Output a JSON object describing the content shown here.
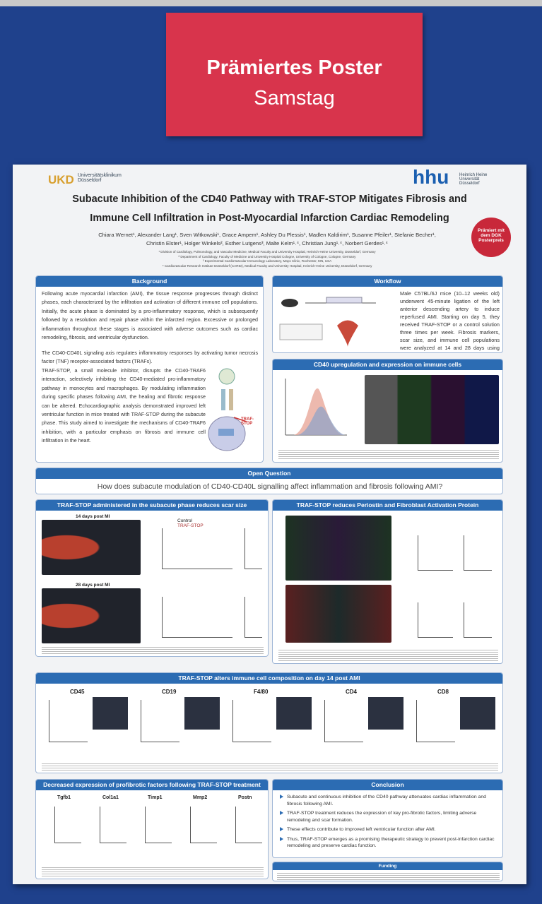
{
  "sign": {
    "line1": "Prämiertes Poster",
    "line2": "Samstag"
  },
  "poster": {
    "logo_left": {
      "mark": "UKD",
      "name": "Universitätsklinikum Düsseldorf"
    },
    "logo_right": {
      "mark": "hhu",
      "name": "Heinrich Heine Universität Düsseldorf"
    },
    "title": [
      "Subacute Inhibition of the CD40 Pathway with TRAF-STOP Mitigates Fibrosis and",
      "Immune Cell Infiltration in Post-Myocardial Infarction Cardiac Remodeling"
    ],
    "authors": [
      "Chiara Wernet¹, Alexander Lang¹, Sven Witkowski¹, Grace Ampem¹, Ashley Du Plessis¹, Madlen Kaldirim¹, Susanne Pfeiler¹, Stefanie Becher¹,",
      "Christin Elster¹, Holger Winkels², Esther Lutgens³, Malte Kelm¹˒⁴, Christian Jung¹˒⁴, Norbert Gerdes¹˒⁴"
    ],
    "affiliations": [
      "¹ Division of Cardiology, Pulmonology, and Vascular Medicine, Medical Faculty and University Hospital, Heinrich-Heine University, Düsseldorf, Germany",
      "² Department of Cardiology, Faculty of Medicine and University Hospital Cologne, University of Cologne, Cologne, Germany",
      "³ Experimental CardioVascular Immunology Laboratory, Mayo Clinic, Rochester, MN, USA",
      "⁴ Cardiovascular Research Institute Düsseldorf (CARID), Medical Faculty and University Hospital, Heinrich-Heine University, Düsseldorf, Germany"
    ],
    "badge": "Prämiert mit dem DGK Posterpreis"
  },
  "sections": {
    "background": {
      "heading": "Background",
      "paragraphs": [
        "Following acute myocardial infarction (AMI), the tissue response progresses through distinct phases, each characterized by the infiltration and activation of different immune cell populations. Initially, the acute phase is dominated by a pro-inflammatory response, which is subsequently followed by a resolution and repair phase within the infarcted region. Excessive or prolonged inflammation throughout these stages is associated with adverse outcomes such as cardiac remodeling, fibrosis, and ventricular dysfunction.",
        "The CD40-CD40L signaling axis regulates inflammatory responses by activating tumor necrosis factor (TNF) receptor-associated factors (TRAFs).",
        "TRAF-STOP, a small molecule inhibitor, disrupts the CD40-TRAF6 interaction, selectively inhibiting the CD40-mediated pro-inflammatory pathway in monocytes and macrophages. By modulating inflammation during specific phases following AMI, the healing and fibrotic response can be altered. Echocardiographic analysis demonstrated improved left ventricular function in mice treated with TRAF-STOP during the subacute phase. This study aimed to investigate the mechanisms of CD40-TRAF6 inhibition, with a particular emphasis on fibrosis and immune cell infiltration in the heart."
      ],
      "diagram_label": "TRAF-STOP"
    },
    "workflow": {
      "heading": "Workflow",
      "text": "Male C57BL/6J mice (10–12 weeks old) underwent 45-minute ligation of the left anterior descending artery to induce reperfused AMI. Starting on day 5, they received TRAF-STOP or a control solution three times per week. Fibrosis markers, scar size, and immune cell populations were analyzed at 14 and 28 days using histology and qPCR."
    },
    "cd40": {
      "heading": "CD40 upregulation and expression on immune cells"
    },
    "open_question": {
      "heading": "Open Question",
      "text": "How does subacute modulation of CD40-CD40L signalling affect inflammation and fibrosis following AMI?"
    },
    "scar": {
      "heading": "TRAF-STOP administered in the subacute phase reduces scar size",
      "timepoints": [
        "14 days post MI",
        "28 days post MI"
      ],
      "groups": [
        "Control",
        "TRAF-STOP"
      ]
    },
    "periostin": {
      "heading": "TRAF-STOP reduces Periostin and Fibroblast Activation Protein"
    },
    "immune": {
      "heading": "TRAF-STOP alters immune cell composition on day 14 post AMI",
      "markers": [
        "CD45",
        "CD19",
        "F4/80",
        "CD4",
        "CD8"
      ]
    },
    "decreased": {
      "heading": "Decreased expression of profibrotic factors following TRAF-STOP treatment",
      "genes": [
        "Tgfb1",
        "Col1a1",
        "Timp1",
        "Mmp2",
        "Postn"
      ]
    },
    "conclusion": {
      "heading": "Conclusion",
      "bullets": [
        "Subacute and continuous inhibition of the CD40 pathway attenuates cardiac inflammation and fibrosis following AMI.",
        "TRAF-STOP treatment reduces the expression of key pro-fibrotic factors, limiting adverse remodeling and scar formation.",
        "These effects contribute to improved left ventricular function after AMI.",
        "Thus, TRAF-STOP emerges as a promising therapeutic strategy to prevent post-infarction cardiac remodeling and preserve cardiac function."
      ]
    },
    "funding": {
      "heading": "Funding"
    }
  }
}
